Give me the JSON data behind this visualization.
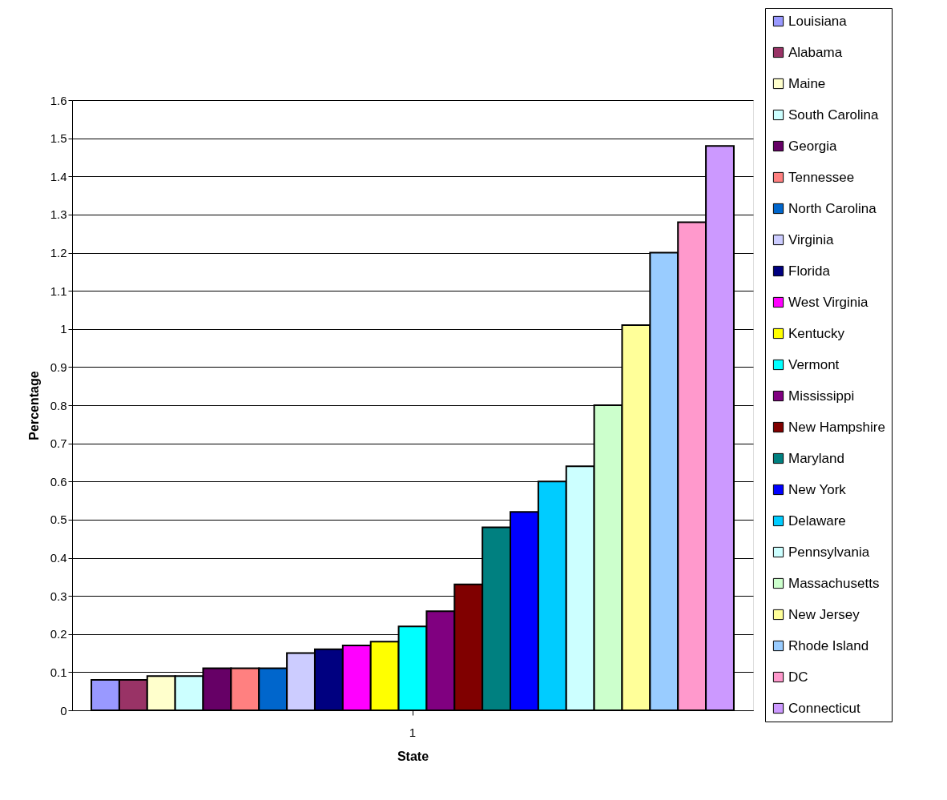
{
  "chart_data": {
    "type": "bar",
    "xlabel": "State",
    "ylabel": "Percentage",
    "categories": [
      "1"
    ],
    "series": [
      {
        "name": "Louisiana",
        "color": "#9999ff",
        "values": [
          0.08
        ]
      },
      {
        "name": "Alabama",
        "color": "#993366",
        "values": [
          0.08
        ]
      },
      {
        "name": "Maine",
        "color": "#ffffcc",
        "values": [
          0.09
        ]
      },
      {
        "name": "South Carolina",
        "color": "#ccffff",
        "values": [
          0.09
        ]
      },
      {
        "name": "Georgia",
        "color": "#660066",
        "values": [
          0.11
        ]
      },
      {
        "name": "Tennessee",
        "color": "#ff8080",
        "values": [
          0.11
        ]
      },
      {
        "name": "North Carolina",
        "color": "#0066cc",
        "values": [
          0.11
        ]
      },
      {
        "name": "Virginia",
        "color": "#ccccff",
        "values": [
          0.15
        ]
      },
      {
        "name": "Florida",
        "color": "#000080",
        "values": [
          0.16
        ]
      },
      {
        "name": "West Virginia",
        "color": "#ff00ff",
        "values": [
          0.17
        ]
      },
      {
        "name": "Kentucky",
        "color": "#ffff00",
        "values": [
          0.18
        ]
      },
      {
        "name": "Vermont",
        "color": "#00ffff",
        "values": [
          0.22
        ]
      },
      {
        "name": "Mississippi",
        "color": "#800080",
        "values": [
          0.26
        ]
      },
      {
        "name": "New Hampshire",
        "color": "#800000",
        "values": [
          0.33
        ]
      },
      {
        "name": "Maryland",
        "color": "#008080",
        "values": [
          0.48
        ]
      },
      {
        "name": "New York",
        "color": "#0000ff",
        "values": [
          0.52
        ]
      },
      {
        "name": "Delaware",
        "color": "#00ccff",
        "values": [
          0.6
        ]
      },
      {
        "name": "Pennsylvania",
        "color": "#ccffff",
        "values": [
          0.64
        ]
      },
      {
        "name": "Massachusetts",
        "color": "#ccffcc",
        "values": [
          0.8
        ]
      },
      {
        "name": "New Jersey",
        "color": "#ffff99",
        "values": [
          1.01
        ]
      },
      {
        "name": "Rhode Island",
        "color": "#99ccff",
        "values": [
          1.2
        ]
      },
      {
        "name": "DC",
        "color": "#ff99cc",
        "values": [
          1.28
        ]
      },
      {
        "name": "Connecticut",
        "color": "#cc99ff",
        "values": [
          1.48
        ]
      }
    ],
    "ylim": [
      0,
      1.6
    ],
    "yticks": [
      0,
      0.1,
      0.2,
      0.3,
      0.4,
      0.5,
      0.6,
      0.7,
      0.8,
      0.9,
      1,
      1.1,
      1.2,
      1.3,
      1.4,
      1.5,
      1.6
    ],
    "grid": "y",
    "legend": "right"
  }
}
